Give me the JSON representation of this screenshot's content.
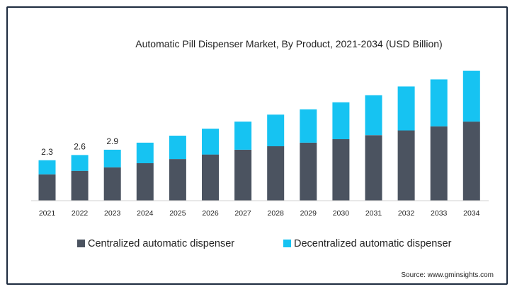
{
  "chart_data": {
    "type": "bar",
    "stacked": true,
    "title": "Automatic Pill Dispenser Market, By Product, 2021-2034 (USD Billion)",
    "categories": [
      "2021",
      "2022",
      "2023",
      "2024",
      "2025",
      "2026",
      "2027",
      "2028",
      "2029",
      "2030",
      "2031",
      "2032",
      "2033",
      "2034"
    ],
    "series": [
      {
        "name": "Centralized automatic dispenser",
        "color": "#4b5360",
        "values": [
          1.5,
          1.7,
          1.9,
          2.13,
          2.37,
          2.63,
          2.9,
          3.1,
          3.3,
          3.5,
          3.73,
          4.0,
          4.23,
          4.5
        ]
      },
      {
        "name": "Decentralized automatic dispenser",
        "color": "#16c3f2",
        "values": [
          0.8,
          0.9,
          1.0,
          1.17,
          1.33,
          1.47,
          1.6,
          1.8,
          1.9,
          2.1,
          2.27,
          2.5,
          2.67,
          2.9
        ]
      }
    ],
    "data_labels": [
      {
        "category": "2021",
        "text": "2.3"
      },
      {
        "category": "2022",
        "text": "2.6"
      },
      {
        "category": "2023",
        "text": "2.9"
      }
    ],
    "ylim": [
      0,
      7.4
    ],
    "grid": false,
    "legend_position": "bottom"
  },
  "source": "Source: www.gminsights.com"
}
